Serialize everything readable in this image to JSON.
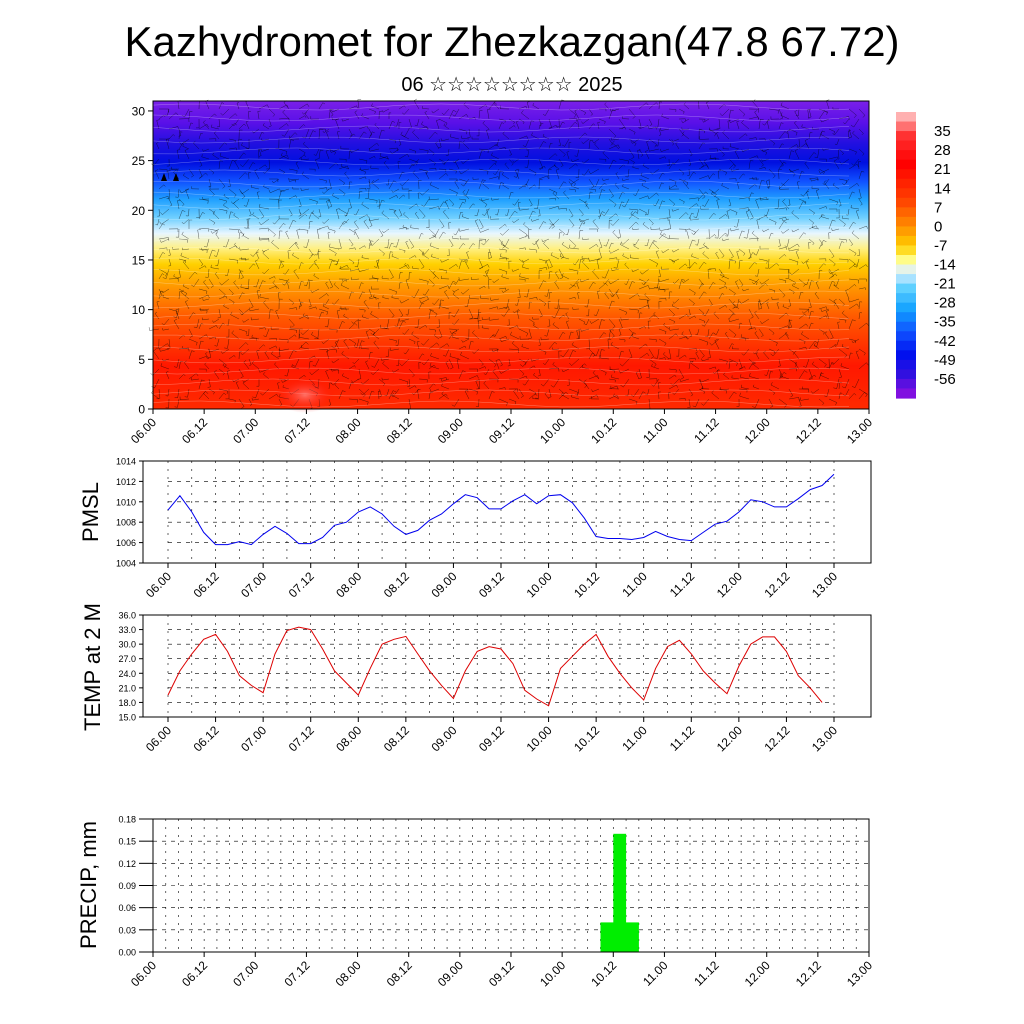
{
  "header": {
    "title": "Kazhydromet for Zhezkazgan(47.8 67.72)",
    "subtitle": "06 ☆☆☆☆☆☆☆☆ 2025"
  },
  "x_ticks": [
    "06.00",
    "06.12",
    "07.00",
    "07.12",
    "08.00",
    "08.12",
    "09.00",
    "09.12",
    "10.00",
    "10.12",
    "11.00",
    "11.12",
    "12.00",
    "12.12",
    "13.00"
  ],
  "colors": {
    "pmsl_line": "#0000ee",
    "temp_line": "#dd0000",
    "precip_bar": "#00ee00",
    "colorbar": [
      "#ffb0b0",
      "#ff0000",
      "#ff5000",
      "#ffa000",
      "#ffe000",
      "#ffff80",
      "#ffffff",
      "#80e0ff",
      "#00a0ff",
      "#0030ff",
      "#0000cc",
      "#7000dd"
    ]
  },
  "chart_data": [
    {
      "type": "heatmap",
      "name": "cross-section",
      "yticks": [
        "0",
        "5",
        "10",
        "15",
        "20",
        "25",
        "30"
      ],
      "ylim": [
        0,
        31
      ],
      "colorbar_labels": [
        "35",
        "28",
        "21",
        "14",
        "7",
        "0",
        "-7",
        "-14",
        "-21",
        "-28",
        "-35",
        "-42",
        "-49",
        "-56"
      ],
      "colorbar_range": [
        -63,
        42
      ]
    },
    {
      "type": "line",
      "ylabel": "PMSL",
      "ylim": [
        1004,
        1014
      ],
      "yticks": [
        "1014",
        "1012",
        "1010",
        "1008",
        "1006",
        "1004"
      ],
      "values": [
        1009.2,
        1010.6,
        1009.0,
        1007.0,
        1005.8,
        1005.8,
        1006.1,
        1005.8,
        1006.8,
        1007.6,
        1006.9,
        1005.9,
        1005.9,
        1006.5,
        1007.7,
        1008.0,
        1009.0,
        1009.5,
        1008.8,
        1007.6,
        1006.8,
        1007.2,
        1008.2,
        1008.8,
        1009.8,
        1010.7,
        1010.4,
        1009.3,
        1009.3,
        1010.1,
        1010.7,
        1009.8,
        1010.6,
        1010.7,
        1009.9,
        1008.4,
        1006.6,
        1006.4,
        1006.4,
        1006.3,
        1006.5,
        1007.1,
        1006.6,
        1006.3,
        1006.2,
        1007.0,
        1007.8,
        1008.1,
        1009.0,
        1010.2,
        1010.0,
        1009.5,
        1009.5,
        1010.3,
        1011.2,
        1011.6,
        1012.7
      ]
    },
    {
      "type": "line",
      "ylabel": "TEMP at 2 M",
      "ylim": [
        15,
        36
      ],
      "yticks": [
        "36.0",
        "33.0",
        "30.0",
        "27.0",
        "24.0",
        "21.0",
        "18.0",
        "15.0"
      ],
      "values": [
        19.5,
        24.5,
        28.0,
        31.0,
        32.0,
        28.5,
        23.5,
        21.5,
        20.0,
        28.0,
        32.8,
        33.5,
        33.0,
        29.0,
        24.5,
        22.0,
        19.5,
        25.0,
        30.0,
        31.0,
        31.6,
        28.0,
        24.5,
        21.5,
        18.8,
        24.5,
        28.5,
        29.5,
        29.0,
        26.0,
        20.5,
        18.7,
        17.3,
        25.0,
        27.5,
        30.0,
        32.0,
        27.5,
        24.0,
        21.0,
        18.5,
        25.0,
        29.5,
        30.8,
        28.0,
        24.5,
        22.0,
        19.8,
        25.5,
        30.0,
        31.5,
        31.5,
        28.5,
        23.5,
        21.0,
        18.0
      ]
    },
    {
      "type": "bar",
      "ylabel": "PRECIP, mm",
      "ylim": [
        0,
        0.18
      ],
      "yticks": [
        "0.18",
        "0.15",
        "0.12",
        "0.09",
        "0.06",
        "0.03",
        "0.00"
      ],
      "bars": [
        {
          "x_start_step": 35,
          "x_end_step": 38,
          "value": 0.04
        },
        {
          "x_start_step": 36,
          "x_end_step": 37,
          "value": 0.16
        }
      ]
    }
  ]
}
